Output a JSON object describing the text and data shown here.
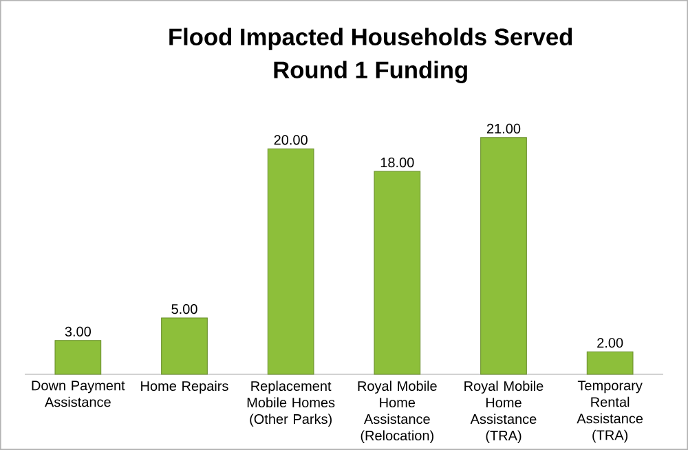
{
  "chart_data": {
    "type": "bar",
    "title": "Flood Impacted Households Served",
    "subtitle": "Round 1 Funding",
    "categories": [
      "Down Payment Assistance",
      "Home Repairs",
      "Replacement Mobile Homes (Other Parks)",
      "Royal Mobile Home Assistance (Relocation)",
      "Royal Mobile Home Assistance (TRA)",
      "Temporary Rental Assistance (TRA)"
    ],
    "values": [
      3,
      5,
      20,
      18,
      21,
      2
    ],
    "value_labels": [
      "3.00",
      "5.00",
      "20.00",
      "18.00",
      "21.00",
      "2.00"
    ],
    "color": "#8dbf3a",
    "tick_labels": "x"
  }
}
